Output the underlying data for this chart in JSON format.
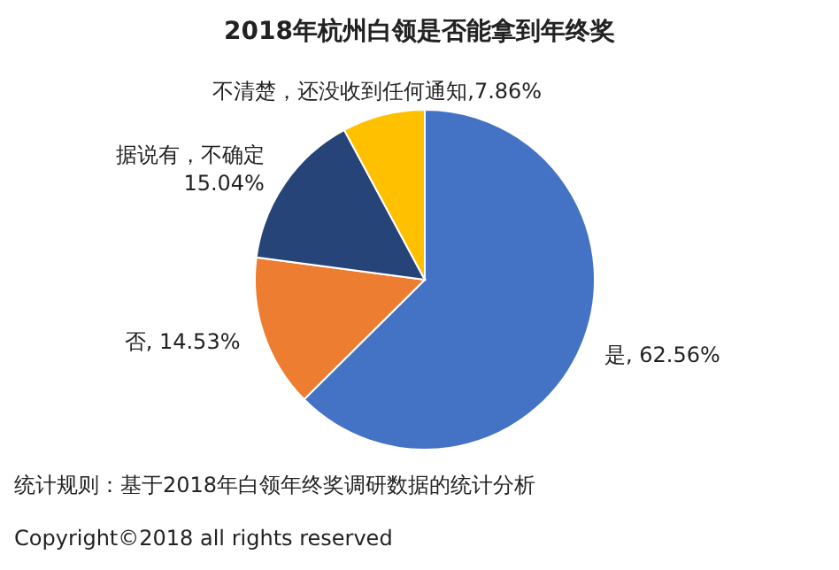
{
  "chart_data": {
    "type": "pie",
    "title": "2018年杭州白领是否能拿到年终奖",
    "categories": [
      "是",
      "否",
      "据说有，不确定",
      "不清楚，还没收到任何通知"
    ],
    "values": [
      62.56,
      14.53,
      15.04,
      7.86
    ],
    "colors": [
      "#4472c4",
      "#ed7d31",
      "#264478",
      "#ffc000"
    ],
    "value_labels": [
      ", 62.56%",
      ", 14.53%",
      "\n15.04%",
      ",7.86%"
    ],
    "annotations": [
      "统计规则：基于2018年白领年终奖调研数据的统计分析",
      "Copyright©2018 all rights reserved"
    ]
  }
}
